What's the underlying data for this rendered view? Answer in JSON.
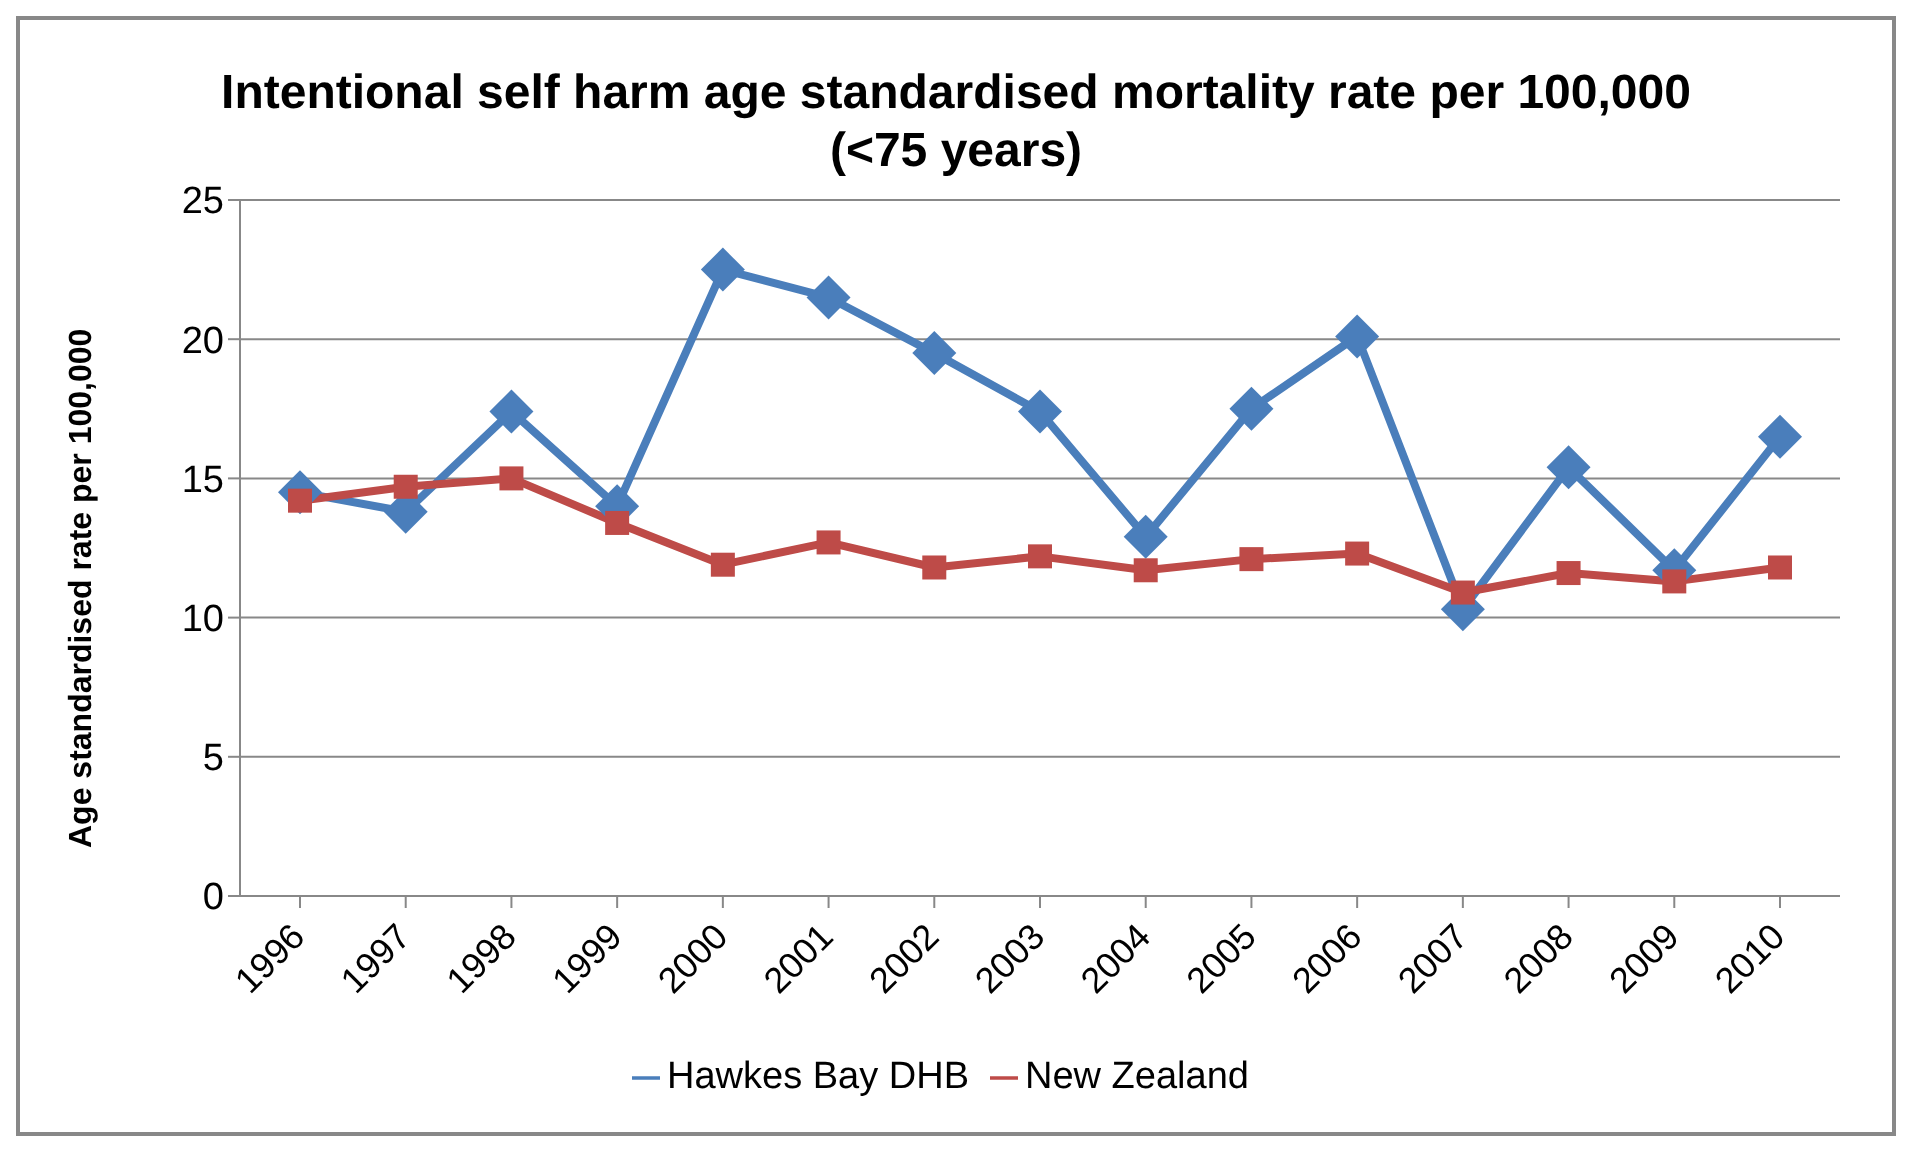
{
  "chart_data": {
    "type": "line",
    "title": "Intentional self harm age standardised mortality rate per 100,000 (<75 years)",
    "ylabel": "Age standardised rate per 100,000",
    "categories": [
      "1996",
      "1997",
      "1998",
      "1999",
      "2000",
      "2001",
      "2002",
      "2003",
      "2004",
      "2005",
      "2006",
      "2007",
      "2008",
      "2009",
      "2010"
    ],
    "series": [
      {
        "name": "Hawkes Bay DHB",
        "color": "#4a7ebb",
        "marker": "diamond",
        "values": [
          14.5,
          13.8,
          17.4,
          14.0,
          22.5,
          21.5,
          19.5,
          17.4,
          12.9,
          17.5,
          20.1,
          10.3,
          15.4,
          11.7,
          16.5
        ]
      },
      {
        "name": "New Zealand",
        "color": "#be4b48",
        "marker": "square",
        "values": [
          14.2,
          14.7,
          15.0,
          13.4,
          11.9,
          12.7,
          11.8,
          12.2,
          11.7,
          12.1,
          12.3,
          10.9,
          11.6,
          11.3,
          11.8
        ]
      }
    ],
    "ylim": [
      0,
      25
    ],
    "yticks": [
      0,
      5,
      10,
      15,
      20,
      25
    ],
    "grid": "y",
    "legend": "bottom"
  }
}
